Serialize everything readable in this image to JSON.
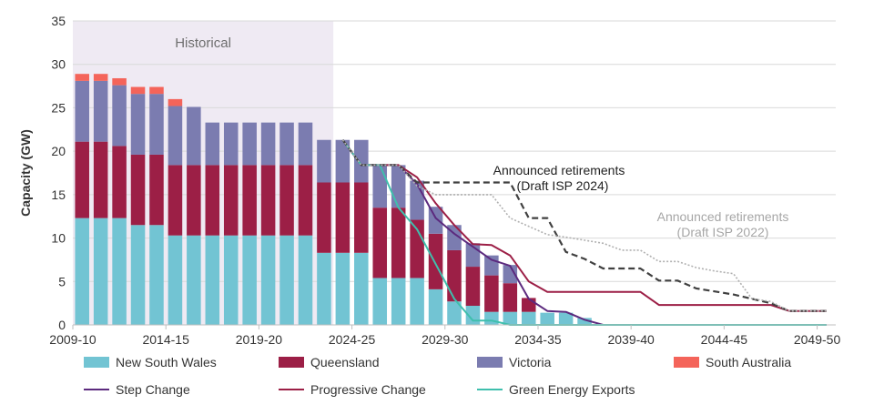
{
  "chart_data": {
    "type": "bar",
    "ylabel": "Capacity (GW)",
    "ylim": [
      0,
      35
    ],
    "yticks": [
      0,
      5,
      10,
      15,
      20,
      25,
      30,
      35
    ],
    "xtick_labels": [
      "2009-10",
      "2014-15",
      "2019-20",
      "2024-25",
      "2029-30",
      "2034-35",
      "2039-40",
      "2044-45",
      "2049-50"
    ],
    "grid": "horizontal",
    "legend_position": "bottom",
    "historical_label": "Historical",
    "historical_range": [
      "2009-10",
      "2022-23"
    ],
    "categories": [
      "2009-10",
      "2010-11",
      "2011-12",
      "2012-13",
      "2013-14",
      "2014-15",
      "2015-16",
      "2016-17",
      "2017-18",
      "2018-19",
      "2019-20",
      "2020-21",
      "2021-22",
      "2022-23",
      "2023-24",
      "2024-25",
      "2025-26",
      "2026-27",
      "2027-28",
      "2028-29",
      "2029-30",
      "2030-31",
      "2031-32",
      "2032-33",
      "2033-34",
      "2034-35",
      "2035-36",
      "2036-37",
      "2037-38",
      "2038-39",
      "2039-40",
      "2040-41",
      "2041-42",
      "2042-43",
      "2043-44",
      "2044-45",
      "2045-46",
      "2046-47",
      "2047-48",
      "2048-49",
      "2049-50"
    ],
    "series": [
      {
        "name": "New South Wales",
        "color": "#72c4d3",
        "values": [
          12.3,
          12.3,
          12.3,
          11.5,
          11.5,
          10.3,
          10.3,
          10.3,
          10.3,
          10.3,
          10.3,
          10.3,
          10.3,
          8.3,
          8.3,
          8.3,
          5.4,
          5.4,
          5.4,
          4.1,
          2.7,
          2.2,
          1.5,
          1.5,
          1.5,
          1.4,
          1.4,
          0.8,
          0,
          0,
          0,
          0,
          0,
          0,
          0,
          0,
          0,
          0,
          0,
          0,
          0
        ]
      },
      {
        "name": "Queensland",
        "color": "#9c1f46",
        "values": [
          8.8,
          8.8,
          8.3,
          8.1,
          8.1,
          8.1,
          8.1,
          8.1,
          8.1,
          8.1,
          8.1,
          8.1,
          8.1,
          8.1,
          8.1,
          8.1,
          8.1,
          8.1,
          6.7,
          6.4,
          5.9,
          4.5,
          4.2,
          3.3,
          1.6,
          0,
          0,
          0,
          0,
          0,
          0,
          0,
          0,
          0,
          0,
          0,
          0,
          0,
          0,
          0,
          0
        ]
      },
      {
        "name": "Victoria",
        "color": "#7b7cb0",
        "values": [
          7.0,
          7.0,
          7.0,
          7.0,
          7.0,
          6.8,
          6.7,
          4.9,
          4.9,
          4.9,
          4.9,
          4.9,
          4.9,
          4.9,
          4.9,
          4.9,
          4.9,
          4.9,
          4.5,
          3.1,
          2.9,
          2.7,
          2.3,
          2.1,
          0,
          0,
          0,
          0,
          0,
          0,
          0,
          0,
          0,
          0,
          0,
          0,
          0,
          0,
          0,
          0,
          0
        ]
      },
      {
        "name": "South Australia",
        "color": "#f4645a",
        "values": [
          0.8,
          0.8,
          0.8,
          0.8,
          0.8,
          0.8,
          0,
          0,
          0,
          0,
          0,
          0,
          0,
          0,
          0,
          0,
          0,
          0,
          0,
          0,
          0,
          0,
          0,
          0,
          0,
          0,
          0,
          0,
          0,
          0,
          0,
          0,
          0,
          0,
          0,
          0,
          0,
          0,
          0,
          0,
          0
        ]
      }
    ],
    "lines": [
      {
        "name": "Step Change",
        "color": "#5c2a7e",
        "dash": "solid",
        "points": [
          [
            "2023-24",
            21.3
          ],
          [
            "2024-25",
            18.4
          ],
          [
            "2025-26",
            18.4
          ],
          [
            "2026-27",
            18.4
          ],
          [
            "2027-28",
            16.2
          ],
          [
            "2028-29",
            12.3
          ],
          [
            "2029-30",
            10.5
          ],
          [
            "2030-31",
            9.0
          ],
          [
            "2031-32",
            7.5
          ],
          [
            "2032-33",
            6.8
          ],
          [
            "2033-34",
            3.0
          ],
          [
            "2034-35",
            1.6
          ],
          [
            "2035-36",
            1.5
          ],
          [
            "2036-37",
            0.6
          ],
          [
            "2037-38",
            0
          ],
          [
            "2049-50",
            0
          ]
        ]
      },
      {
        "name": "Progressive Change",
        "color": "#9c1f46",
        "dash": "solid",
        "points": [
          [
            "2023-24",
            21.3
          ],
          [
            "2024-25",
            18.4
          ],
          [
            "2025-26",
            18.4
          ],
          [
            "2026-27",
            18.4
          ],
          [
            "2027-28",
            17.0
          ],
          [
            "2028-29",
            14.0
          ],
          [
            "2029-30",
            11.5
          ],
          [
            "2030-31",
            9.3
          ],
          [
            "2031-32",
            9.2
          ],
          [
            "2032-33",
            8.0
          ],
          [
            "2033-34",
            5.0
          ],
          [
            "2034-35",
            3.8
          ],
          [
            "2035-36",
            3.8
          ],
          [
            "2039-40",
            3.8
          ],
          [
            "2040-41",
            2.3
          ],
          [
            "2046-47",
            2.3
          ],
          [
            "2047-48",
            1.6
          ],
          [
            "2049-50",
            1.6
          ]
        ]
      },
      {
        "name": "Green Energy Exports",
        "color": "#3fbfad",
        "dash": "solid",
        "points": [
          [
            "2023-24",
            21.3
          ],
          [
            "2024-25",
            18.4
          ],
          [
            "2025-26",
            18.4
          ],
          [
            "2026-27",
            13.5
          ],
          [
            "2027-28",
            11.0
          ],
          [
            "2028-29",
            7.0
          ],
          [
            "2029-30",
            3.0
          ],
          [
            "2030-31",
            0.5
          ],
          [
            "2031-32",
            0.5
          ],
          [
            "2032-33",
            0
          ],
          [
            "2049-50",
            0
          ]
        ]
      },
      {
        "name": "Announced retirements (Draft ISP 2024)",
        "color": "#404040",
        "dash": "dashed",
        "label_lines": [
          "Announced retirements",
          "(Draft ISP 2024)"
        ],
        "points": [
          [
            "2023-24",
            21.3
          ],
          [
            "2024-25",
            18.4
          ],
          [
            "2026-27",
            18.4
          ],
          [
            "2027-28",
            16.4
          ],
          [
            "2029-30",
            16.4
          ],
          [
            "2032-33",
            16.4
          ],
          [
            "2033-34",
            12.3
          ],
          [
            "2034-35",
            12.3
          ],
          [
            "2035-36",
            8.4
          ],
          [
            "2036-37",
            7.6
          ],
          [
            "2037-38",
            6.5
          ],
          [
            "2039-40",
            6.5
          ],
          [
            "2040-41",
            5.1
          ],
          [
            "2041-42",
            5.1
          ],
          [
            "2042-43",
            4.2
          ],
          [
            "2044-45",
            3.5
          ],
          [
            "2046-47",
            2.5
          ],
          [
            "2047-48",
            1.6
          ],
          [
            "2049-50",
            1.6
          ]
        ]
      },
      {
        "name": "Announced retirements (Draft ISP 2022)",
        "color": "#b0b0b0",
        "dash": "dotted",
        "label_lines": [
          "Announced retirements",
          "(Draft ISP 2022)"
        ],
        "points": [
          [
            "2023-24",
            21.3
          ],
          [
            "2024-25",
            18.4
          ],
          [
            "2026-27",
            18.4
          ],
          [
            "2027-28",
            16.0
          ],
          [
            "2028-29",
            15.0
          ],
          [
            "2031-32",
            15.0
          ],
          [
            "2032-33",
            12.3
          ],
          [
            "2034-35",
            10.4
          ],
          [
            "2035-36",
            10.1
          ],
          [
            "2037-38",
            9.4
          ],
          [
            "2038-39",
            8.6
          ],
          [
            "2039-40",
            8.6
          ],
          [
            "2040-41",
            7.3
          ],
          [
            "2041-42",
            7.3
          ],
          [
            "2042-43",
            6.6
          ],
          [
            "2043-44",
            6.2
          ],
          [
            "2044-45",
            5.9
          ],
          [
            "2045-46",
            3.0
          ],
          [
            "2046-47",
            2.7
          ],
          [
            "2047-48",
            1.6
          ],
          [
            "2049-50",
            1.6
          ]
        ]
      }
    ]
  }
}
